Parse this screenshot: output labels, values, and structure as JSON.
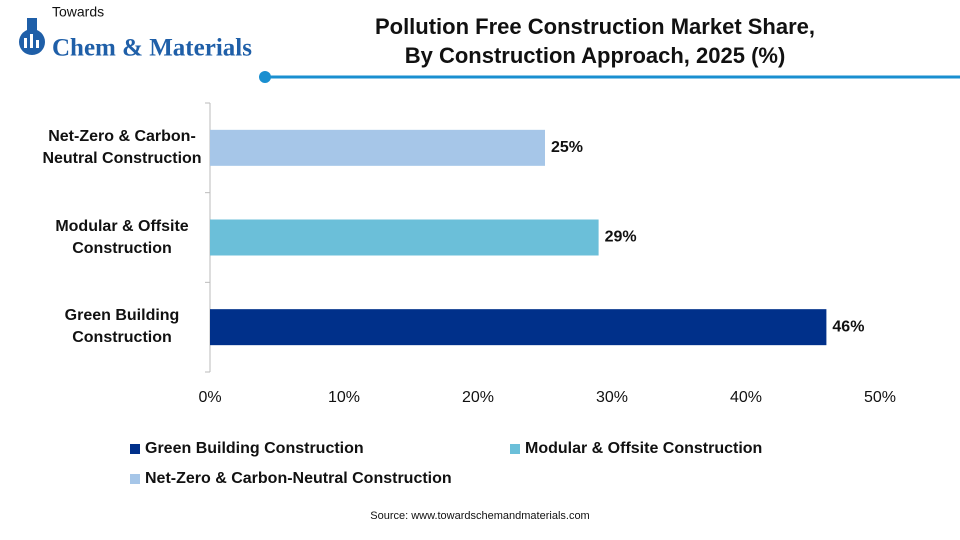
{
  "brand": {
    "line1": "Towards",
    "line2": "Chem & Materials"
  },
  "chart_data": {
    "type": "hbar",
    "title": [
      "Pollution Free Construction Market Share,",
      "By Construction Approach, 2025 (%)"
    ],
    "categories": [
      "Green Building Construction",
      "Modular & Offsite Construction",
      "Net-Zero & Carbon-Neutral Construction"
    ],
    "values": [
      46,
      29,
      25
    ],
    "value_labels": [
      "46%",
      "29%",
      "25%"
    ],
    "colors": [
      "#00308a",
      "#6bbfd9",
      "#a6c6e8"
    ],
    "xlim": [
      0,
      50
    ],
    "xticks": [
      {
        "value": 0,
        "label": "0%"
      },
      {
        "value": 10,
        "label": "10%"
      },
      {
        "value": 20,
        "label": "20%"
      },
      {
        "value": 30,
        "label": "30%"
      },
      {
        "value": 40,
        "label": "40%"
      },
      {
        "value": 50,
        "label": "50%"
      }
    ],
    "grid": false,
    "source": "Source: www.towardschemandmaterials.com"
  }
}
